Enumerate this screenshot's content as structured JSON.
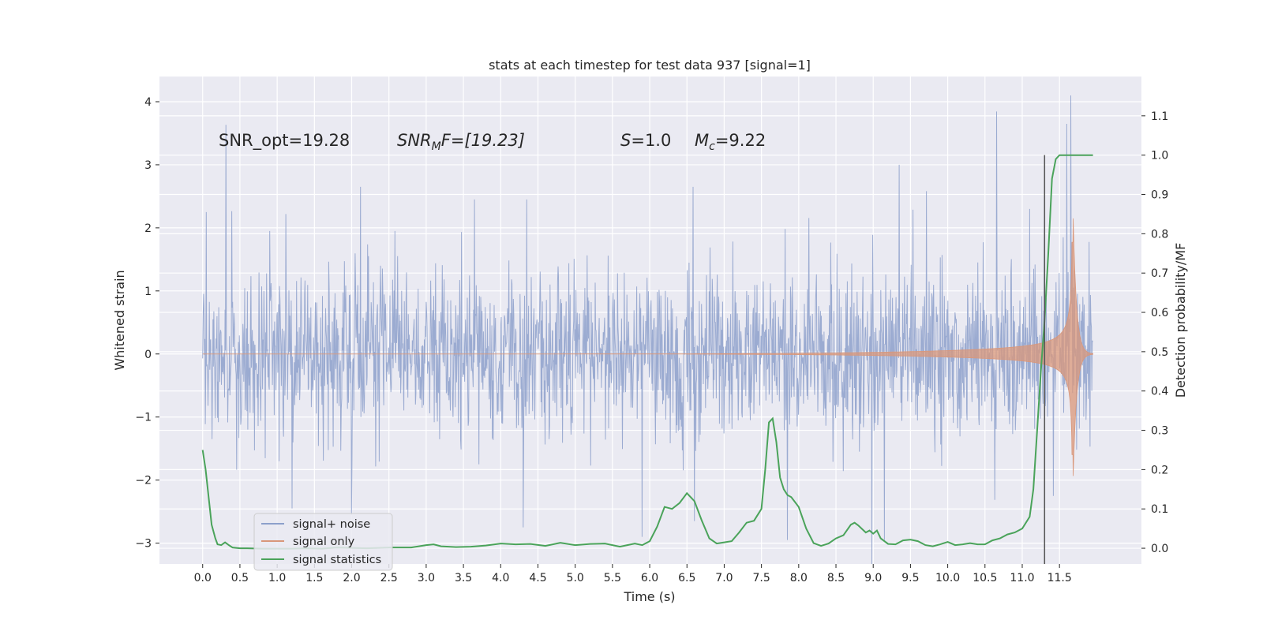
{
  "chart_data": {
    "type": "line",
    "title": "stats at each timestep for test data 937 [signal=1]",
    "xlabel": "Time (s)",
    "ylabel": "Whitened strain",
    "ylabel_right": "Detection probability/MF",
    "xlim": [
      -0.58,
      12.6
    ],
    "ylim": [
      -3.33,
      4.4
    ],
    "ylim_right": [
      -0.04,
      1.2
    ],
    "xticks": [
      0.0,
      0.5,
      1.0,
      1.5,
      2.0,
      2.5,
      3.0,
      3.5,
      4.0,
      4.5,
      5.0,
      5.5,
      6.0,
      6.5,
      7.0,
      7.5,
      8.0,
      8.5,
      9.0,
      9.5,
      10.0,
      10.5,
      11.0,
      11.5
    ],
    "xtick_labels": [
      "0.0",
      "0.5",
      "1.0",
      "1.5",
      "2.0",
      "2.5",
      "3.0",
      "3.5",
      "4.0",
      "4.5",
      "5.0",
      "5.5",
      "6.0",
      "6.5",
      "7.0",
      "7.5",
      "8.0",
      "8.5",
      "9.0",
      "9.5",
      "10.0",
      "10.5",
      "11.0",
      "11.5"
    ],
    "yticks": [
      -3,
      -2,
      -1,
      0,
      1,
      2,
      3,
      4
    ],
    "ytick_labels": [
      "−3",
      "−2",
      "−1",
      "0",
      "1",
      "2",
      "3",
      "4"
    ],
    "yticks_right": [
      0.0,
      0.1,
      0.2,
      0.3,
      0.4,
      0.5,
      0.6,
      0.7,
      0.8,
      0.9,
      1.0,
      1.1
    ],
    "ytick_labels_right": [
      "0.0",
      "0.1",
      "0.2",
      "0.3",
      "0.4",
      "0.5",
      "0.6",
      "0.7",
      "0.8",
      "0.9",
      "1.0",
      "1.1"
    ],
    "grid": true,
    "legend_position": "bottom-left",
    "colors": {
      "plot_background": "#eaeaf2",
      "grid": "#ffffff",
      "signal_noise": "#8da0cb",
      "signal_only": "#d9977a",
      "signal_statistics": "#4aa35a",
      "marker_line": "#555555"
    },
    "annotations": {
      "snr_opt": "SNR_opt=19.28",
      "snr_mf_base": "SNR",
      "snr_mf_sub": "M",
      "snr_mf_rest": "F=[19.23]",
      "s_italic": "S",
      "s_rest": "=1.0",
      "mc_base": "M",
      "mc_sub": "c",
      "mc_rest": "=9.22"
    },
    "series": [
      {
        "name": "signal+ noise",
        "axis": "left",
        "t_start": 0.0,
        "t_end": 11.95,
        "std": 0.62,
        "spikes": [
          [
            0.05,
            2.25
          ],
          [
            0.9,
            1.95
          ],
          [
            1.2,
            -2.45
          ],
          [
            2.0,
            -2.55
          ],
          [
            2.12,
            2.65
          ],
          [
            2.58,
            1.95
          ],
          [
            3.65,
            2.45
          ],
          [
            4.3,
            -2.75
          ],
          [
            4.35,
            2.45
          ],
          [
            5.9,
            -2.9
          ],
          [
            6.58,
            2.65
          ],
          [
            6.6,
            -2.65
          ],
          [
            7.85,
            -2.95
          ],
          [
            9.15,
            -2.95
          ],
          [
            9.35,
            3.0
          ],
          [
            11.1,
            2.3
          ],
          [
            11.3,
            2.5
          ],
          [
            11.42,
            -2.25
          ],
          [
            11.55,
            1.85
          ],
          [
            11.6,
            3.65
          ],
          [
            11.65,
            4.1
          ]
        ]
      },
      {
        "name": "signal only",
        "axis": "left",
        "t_merger": 11.68,
        "peak_amplitude": 2.35
      },
      {
        "name": "signal statistics",
        "axis": "right",
        "x": [
          0.0,
          0.04,
          0.08,
          0.12,
          0.17,
          0.2,
          0.25,
          0.3,
          0.35,
          0.4,
          0.5,
          0.6,
          0.8,
          1.0,
          1.2,
          1.4,
          1.6,
          1.8,
          2.0,
          2.2,
          2.5,
          2.8,
          3.0,
          3.1,
          3.2,
          3.4,
          3.6,
          3.8,
          4.0,
          4.2,
          4.4,
          4.6,
          4.8,
          5.0,
          5.2,
          5.4,
          5.6,
          5.7,
          5.8,
          5.9,
          6.0,
          6.1,
          6.2,
          6.3,
          6.4,
          6.5,
          6.6,
          6.7,
          6.8,
          6.9,
          7.0,
          7.1,
          7.2,
          7.3,
          7.4,
          7.5,
          7.55,
          7.6,
          7.65,
          7.7,
          7.75,
          7.8,
          7.85,
          7.9,
          8.0,
          8.1,
          8.2,
          8.3,
          8.4,
          8.5,
          8.6,
          8.7,
          8.75,
          8.8,
          8.9,
          8.95,
          9.0,
          9.05,
          9.1,
          9.2,
          9.3,
          9.4,
          9.5,
          9.6,
          9.7,
          9.8,
          9.9,
          10.0,
          10.1,
          10.2,
          10.3,
          10.4,
          10.5,
          10.6,
          10.7,
          10.8,
          10.9,
          11.0,
          11.1,
          11.15,
          11.2,
          11.25,
          11.3,
          11.35,
          11.4,
          11.45,
          11.5,
          11.55,
          11.6,
          11.7,
          11.8,
          11.9,
          11.95
        ],
        "y": [
          0.25,
          0.2,
          0.13,
          0.06,
          0.025,
          0.01,
          0.008,
          0.015,
          0.008,
          0.002,
          0.0,
          0.0,
          -0.001,
          -0.001,
          -0.001,
          0.0,
          -0.001,
          0.002,
          0.001,
          0.0,
          0.002,
          0.002,
          0.008,
          0.01,
          0.005,
          0.003,
          0.004,
          0.007,
          0.012,
          0.01,
          0.011,
          0.006,
          0.014,
          0.008,
          0.011,
          0.012,
          0.004,
          0.008,
          0.012,
          0.008,
          0.018,
          0.055,
          0.105,
          0.1,
          0.115,
          0.14,
          0.12,
          0.07,
          0.025,
          0.012,
          0.015,
          0.018,
          0.04,
          0.065,
          0.07,
          0.1,
          0.2,
          0.32,
          0.33,
          0.27,
          0.18,
          0.15,
          0.135,
          0.13,
          0.105,
          0.05,
          0.013,
          0.006,
          0.012,
          0.025,
          0.033,
          0.06,
          0.065,
          0.058,
          0.04,
          0.045,
          0.037,
          0.045,
          0.025,
          0.011,
          0.01,
          0.02,
          0.022,
          0.018,
          0.008,
          0.005,
          0.01,
          0.016,
          0.008,
          0.01,
          0.013,
          0.01,
          0.01,
          0.02,
          0.025,
          0.035,
          0.04,
          0.05,
          0.08,
          0.15,
          0.3,
          0.45,
          0.58,
          0.75,
          0.94,
          0.99,
          1.0,
          1.0,
          1.0,
          1.0,
          1.0,
          1.0,
          1.0
        ]
      }
    ],
    "vline": {
      "x": 11.3,
      "ymin_right": -0.04,
      "ymax_right": 1.0
    }
  }
}
